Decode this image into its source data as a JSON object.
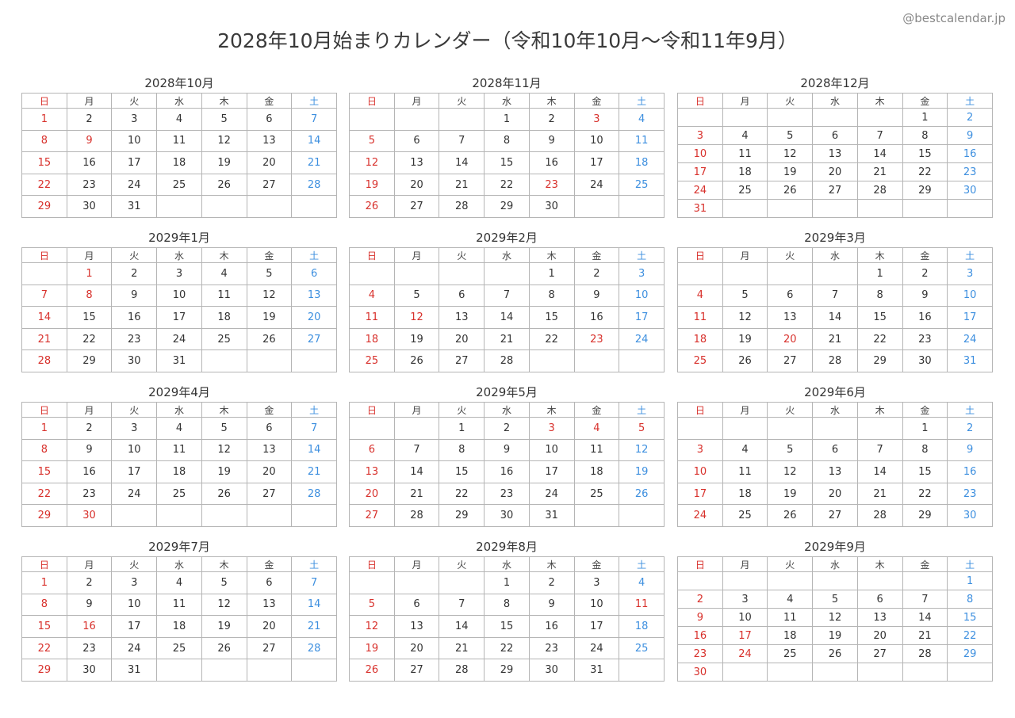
{
  "site": "@bestcalendar.jp",
  "title": "2028年10月始まりカレンダー（令和10年10月〜令和11年9月）",
  "weekdays": [
    "日",
    "月",
    "火",
    "水",
    "木",
    "金",
    "土"
  ],
  "colors": {
    "sunday_holiday": "#d8312c",
    "saturday": "#3d8fdf",
    "text": "#333333",
    "border": "#b5b5b5"
  },
  "months": [
    {
      "title": "2028年10月",
      "start_weekday": 0,
      "days": 31,
      "holidays": [
        9
      ]
    },
    {
      "title": "2028年11月",
      "start_weekday": 3,
      "days": 30,
      "holidays": [
        3,
        23
      ]
    },
    {
      "title": "2028年12月",
      "start_weekday": 5,
      "days": 31,
      "holidays": []
    },
    {
      "title": "2029年1月",
      "start_weekday": 1,
      "days": 31,
      "holidays": [
        1,
        8
      ]
    },
    {
      "title": "2029年2月",
      "start_weekday": 4,
      "days": 28,
      "holidays": [
        12,
        23
      ]
    },
    {
      "title": "2029年3月",
      "start_weekday": 4,
      "days": 31,
      "holidays": [
        20
      ]
    },
    {
      "title": "2029年4月",
      "start_weekday": 0,
      "days": 30,
      "holidays": [
        29,
        30
      ]
    },
    {
      "title": "2029年5月",
      "start_weekday": 2,
      "days": 31,
      "holidays": [
        3,
        4,
        5
      ]
    },
    {
      "title": "2029年6月",
      "start_weekday": 5,
      "days": 30,
      "holidays": []
    },
    {
      "title": "2029年7月",
      "start_weekday": 0,
      "days": 31,
      "holidays": [
        16
      ]
    },
    {
      "title": "2029年8月",
      "start_weekday": 3,
      "days": 31,
      "holidays": [
        11
      ]
    },
    {
      "title": "2029年9月",
      "start_weekday": 6,
      "days": 30,
      "holidays": [
        17,
        23,
        24
      ]
    }
  ]
}
